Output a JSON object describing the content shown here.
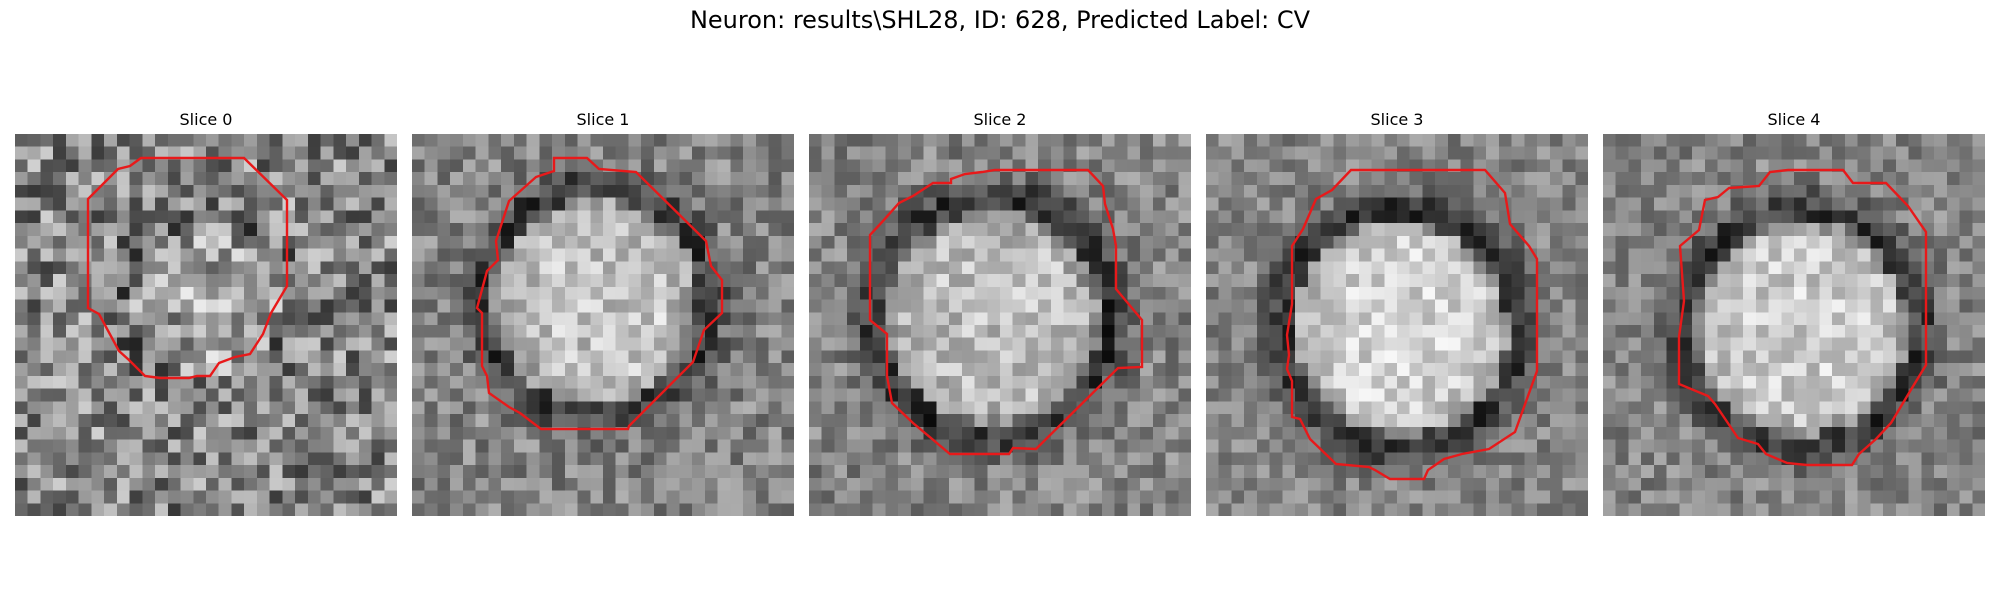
{
  "figure": {
    "title": "Neuron: results\\SHL28, ID: 628, Predicted Label: CV"
  },
  "colors": {
    "contour": "#e8191a",
    "background": "#ffffff"
  },
  "panels": [
    {
      "label": "Slice 0",
      "cell_center": [
        0.5,
        0.44
      ],
      "cell_radius": 0.22,
      "cell_brightness": 0.12,
      "ring_darkness": 0.1,
      "noise": 0.3,
      "seed": 11
    },
    {
      "label": "Slice 1",
      "cell_center": [
        0.48,
        0.44
      ],
      "cell_radius": 0.3,
      "cell_brightness": 0.24,
      "ring_darkness": 0.28,
      "noise": 0.18,
      "seed": 23
    },
    {
      "label": "Slice 2",
      "cell_center": [
        0.48,
        0.48
      ],
      "cell_radius": 0.31,
      "cell_brightness": 0.22,
      "ring_darkness": 0.32,
      "noise": 0.17,
      "seed": 37
    },
    {
      "label": "Slice 3",
      "cell_center": [
        0.51,
        0.51
      ],
      "cell_radius": 0.31,
      "cell_brightness": 0.3,
      "ring_darkness": 0.34,
      "noise": 0.15,
      "seed": 41
    },
    {
      "label": "Slice 4",
      "cell_center": [
        0.52,
        0.51
      ],
      "cell_radius": 0.31,
      "cell_brightness": 0.28,
      "ring_darkness": 0.3,
      "noise": 0.16,
      "seed": 53
    }
  ]
}
